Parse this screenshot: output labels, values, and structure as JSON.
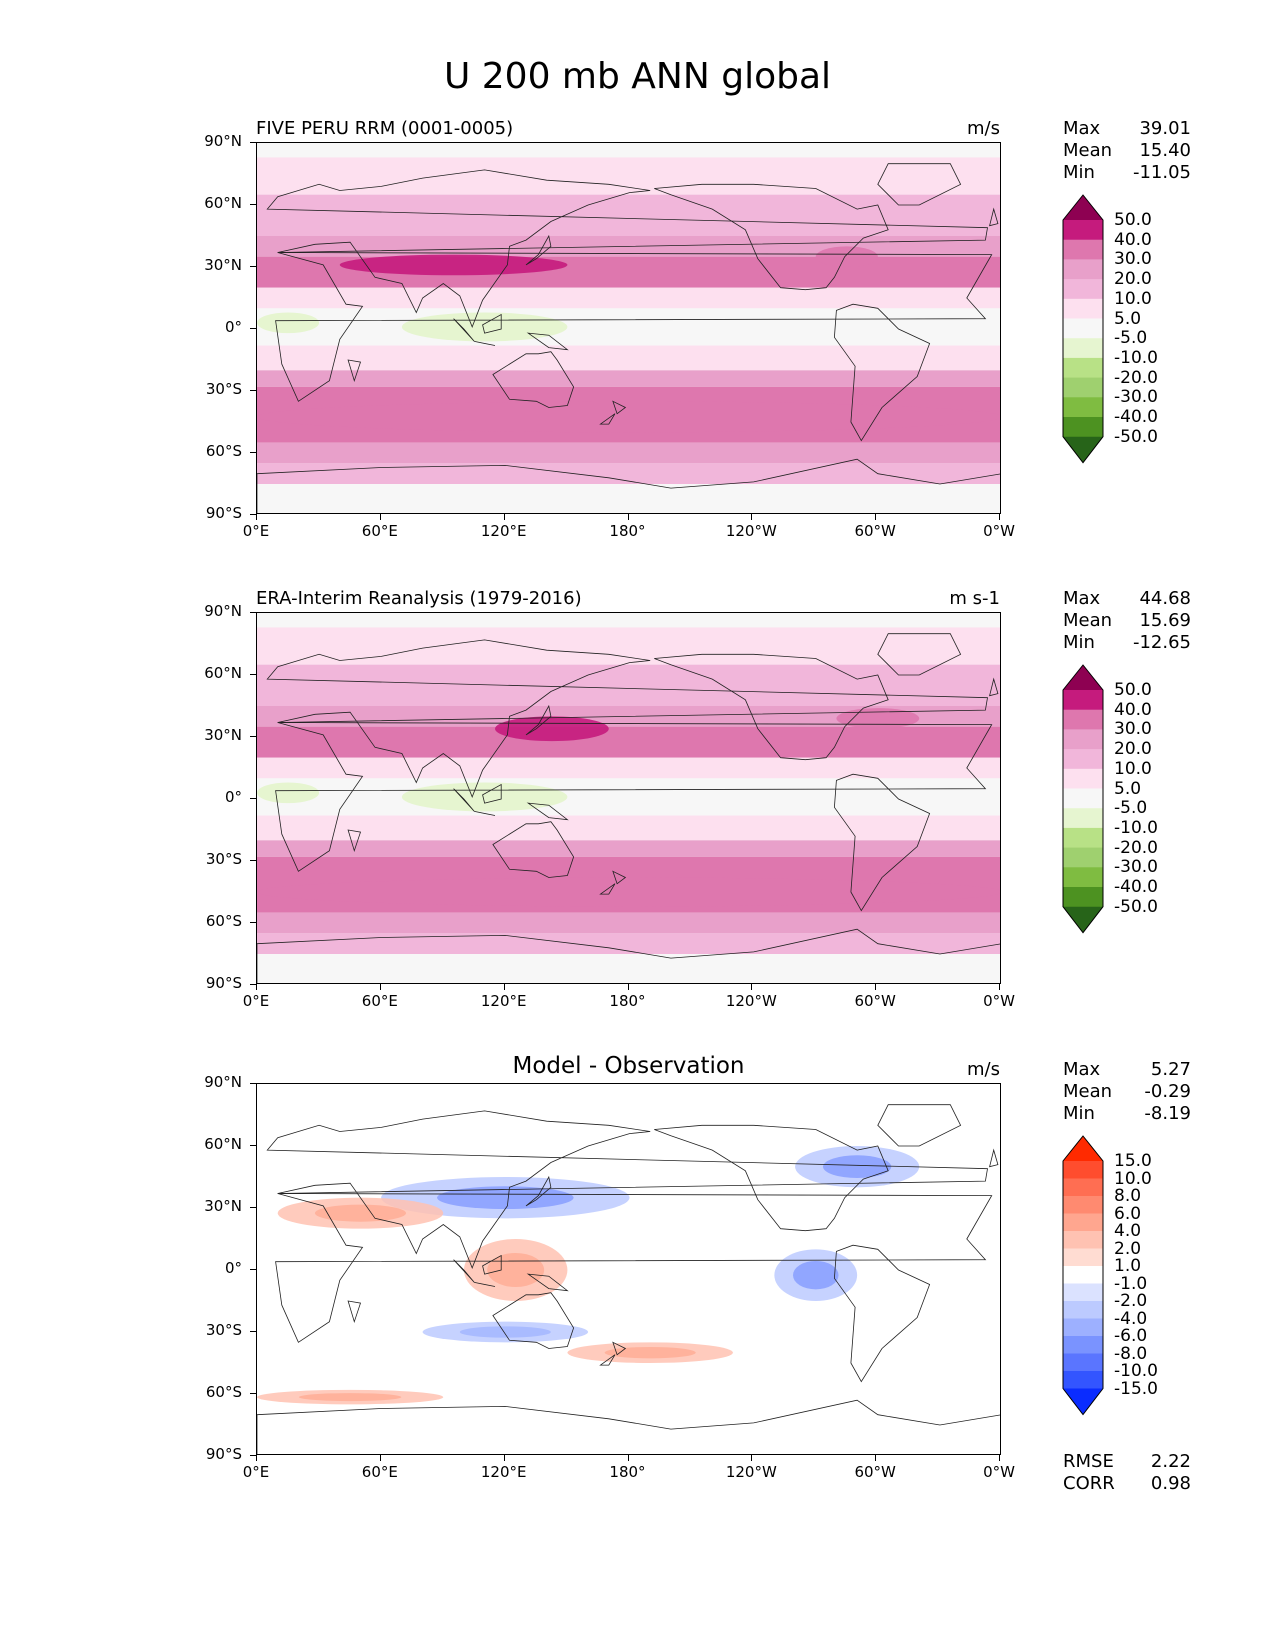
{
  "main_title": "U 200 mb ANN global",
  "lat_ticks": [
    "90°N",
    "60°N",
    "30°N",
    "0°",
    "30°S",
    "60°S",
    "90°S"
  ],
  "lon_ticks": [
    "0°E",
    "60°E",
    "120°E",
    "180°",
    "120°W",
    "60°W",
    "0°W"
  ],
  "stat_labels": {
    "max": "Max",
    "mean": "Mean",
    "min": "Min",
    "rmse": "RMSE",
    "corr": "CORR"
  },
  "panels": [
    {
      "title": "FIVE PERU RRM (0001-0005)",
      "units": "m/s",
      "stats": {
        "max": "39.01",
        "mean": "15.40",
        "min": "-11.05"
      }
    },
    {
      "title": "ERA-Interim Reanalysis (1979-2016)",
      "units": "m s-1",
      "stats": {
        "max": "44.68",
        "mean": "15.69",
        "min": "-12.65"
      }
    },
    {
      "title": "Model - Observation",
      "units": "m/s",
      "stats": {
        "max": "5.27",
        "mean": "-0.29",
        "min": "-8.19"
      },
      "rmse": "2.22",
      "corr": "0.98"
    }
  ],
  "colorbar_field": {
    "levels": [
      "50.0",
      "40.0",
      "30.0",
      "20.0",
      "10.0",
      "5.0",
      "-5.0",
      "-10.0",
      "-20.0",
      "-30.0",
      "-40.0",
      "-50.0"
    ],
    "colors": [
      "#8e0152",
      "#c51b7d",
      "#de77ae",
      "#e8a0ca",
      "#f1b6da",
      "#fde0ef",
      "#f7f7f7",
      "#e6f5d0",
      "#b8e186",
      "#9fd06f",
      "#7fbc41",
      "#4d9221",
      "#276419"
    ]
  },
  "colorbar_diff": {
    "levels": [
      "15.0",
      "10.0",
      "8.0",
      "6.0",
      "4.0",
      "2.0",
      "1.0",
      "-1.0",
      "-2.0",
      "-4.0",
      "-6.0",
      "-8.0",
      "-10.0",
      "-15.0"
    ],
    "colors": [
      "#ff2a00",
      "#ff4d2e",
      "#ff6e52",
      "#ff8a70",
      "#ffa68f",
      "#ffc2b2",
      "#ffdcd2",
      "#ffffff",
      "#dbe2ff",
      "#bccaff",
      "#9db0ff",
      "#7a93ff",
      "#5a75ff",
      "#3355ff",
      "#0a2cff"
    ]
  },
  "chart_data": [
    {
      "type": "heatmap",
      "title": "FIVE PERU RRM (0001-0005)",
      "variable": "U 200 mb ANN global",
      "units": "m/s",
      "lat_range": [
        -90,
        90
      ],
      "lon_range": [
        0,
        360
      ],
      "zonal_bands": [
        {
          "lat": [
            83,
            90
          ],
          "value": 0
        },
        {
          "lat": [
            65,
            83
          ],
          "value": 7
        },
        {
          "lat": [
            45,
            65
          ],
          "value": 15
        },
        {
          "lat": [
            35,
            45
          ],
          "value": 25
        },
        {
          "lat": [
            20,
            35
          ],
          "value": 30
        },
        {
          "lat": [
            10,
            20
          ],
          "value": 8
        },
        {
          "lat": [
            -8,
            10
          ],
          "value": -2
        },
        {
          "lat": [
            -20,
            -8
          ],
          "value": 7
        },
        {
          "lat": [
            -28,
            -20
          ],
          "value": 20
        },
        {
          "lat": [
            -55,
            -28
          ],
          "value": 32
        },
        {
          "lat": [
            -65,
            -55
          ],
          "value": 22
        },
        {
          "lat": [
            -75,
            -65
          ],
          "value": 12
        },
        {
          "lat": [
            -90,
            -75
          ],
          "value": 3
        }
      ],
      "stats": {
        "max": 39.01,
        "mean": 15.4,
        "min": -11.05
      }
    },
    {
      "type": "heatmap",
      "title": "ERA-Interim Reanalysis (1979-2016)",
      "variable": "U 200 mb ANN global",
      "units": "m s-1",
      "lat_range": [
        -90,
        90
      ],
      "lon_range": [
        0,
        360
      ],
      "zonal_bands": [
        {
          "lat": [
            83,
            90
          ],
          "value": 0
        },
        {
          "lat": [
            65,
            83
          ],
          "value": 7
        },
        {
          "lat": [
            45,
            65
          ],
          "value": 15
        },
        {
          "lat": [
            35,
            45
          ],
          "value": 28
        },
        {
          "lat": [
            20,
            35
          ],
          "value": 35
        },
        {
          "lat": [
            10,
            20
          ],
          "value": 8
        },
        {
          "lat": [
            -8,
            10
          ],
          "value": -3
        },
        {
          "lat": [
            -20,
            -8
          ],
          "value": 7
        },
        {
          "lat": [
            -28,
            -20
          ],
          "value": 20
        },
        {
          "lat": [
            -55,
            -28
          ],
          "value": 32
        },
        {
          "lat": [
            -65,
            -55
          ],
          "value": 22
        },
        {
          "lat": [
            -75,
            -65
          ],
          "value": 12
        },
        {
          "lat": [
            -90,
            -75
          ],
          "value": 3
        }
      ],
      "stats": {
        "max": 44.68,
        "mean": 15.69,
        "min": -12.65
      }
    },
    {
      "type": "heatmap",
      "title": "Model - Observation",
      "units": "m/s",
      "lat_range": [
        -90,
        90
      ],
      "lon_range": [
        0,
        360
      ],
      "features": [
        {
          "lat": [
            25,
            45
          ],
          "lon": [
            60,
            180
          ],
          "value": -4
        },
        {
          "lat": [
            40,
            60
          ],
          "lon": [
            260,
            320
          ],
          "value": -4
        },
        {
          "lat": [
            20,
            35
          ],
          "lon": [
            10,
            90
          ],
          "value": 3
        },
        {
          "lat": [
            -15,
            15
          ],
          "lon": [
            100,
            150
          ],
          "value": 3
        },
        {
          "lat": [
            -15,
            10
          ],
          "lon": [
            250,
            290
          ],
          "value": -4
        },
        {
          "lat": [
            -45,
            -35
          ],
          "lon": [
            150,
            230
          ],
          "value": 3
        },
        {
          "lat": [
            -35,
            -25
          ],
          "lon": [
            80,
            160
          ],
          "value": -3
        },
        {
          "lat": [
            -65,
            -58
          ],
          "lon": [
            0,
            90
          ],
          "value": 3
        }
      ],
      "stats": {
        "max": 5.27,
        "mean": -0.29,
        "min": -8.19
      },
      "rmse": 2.22,
      "corr": 0.98
    }
  ]
}
